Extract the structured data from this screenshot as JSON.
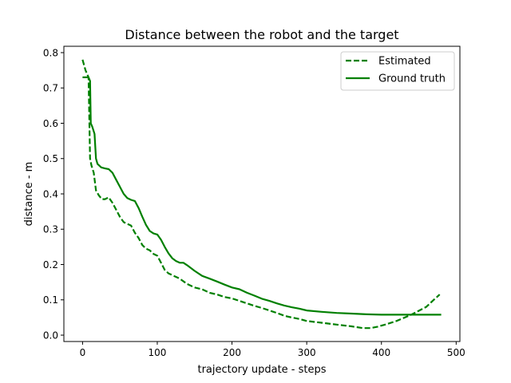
{
  "chart_data": {
    "type": "line",
    "title": "Distance between the robot and the target",
    "xlabel": "trajectory update - steps",
    "ylabel": "distance - m",
    "xlim": [
      -25,
      505
    ],
    "ylim": [
      -0.018,
      0.818
    ],
    "xticks": [
      0,
      100,
      200,
      300,
      400,
      500
    ],
    "yticks": [
      0.0,
      0.1,
      0.2,
      0.3,
      0.4,
      0.5,
      0.6,
      0.7,
      0.8
    ],
    "xtick_labels": [
      "0",
      "100",
      "200",
      "300",
      "400",
      "500"
    ],
    "ytick_labels": [
      "0.0",
      "0.1",
      "0.2",
      "0.3",
      "0.4",
      "0.5",
      "0.6",
      "0.7",
      "0.8"
    ],
    "grid": false,
    "legend_position": "top-right",
    "color": "#008000",
    "series": [
      {
        "name": "Estimated",
        "style": "dashed",
        "x": [
          0,
          4,
          8,
          10,
          12,
          15,
          18,
          22,
          26,
          30,
          35,
          40,
          45,
          50,
          55,
          60,
          65,
          70,
          75,
          80,
          85,
          90,
          95,
          100,
          105,
          110,
          115,
          120,
          125,
          130,
          140,
          150,
          160,
          170,
          180,
          190,
          200,
          210,
          220,
          230,
          240,
          250,
          260,
          270,
          280,
          290,
          300,
          320,
          340,
          360,
          375,
          385,
          395,
          405,
          420,
          440,
          460,
          470,
          478
        ],
        "y": [
          0.78,
          0.75,
          0.73,
          0.5,
          0.48,
          0.46,
          0.41,
          0.395,
          0.385,
          0.385,
          0.39,
          0.375,
          0.355,
          0.335,
          0.32,
          0.315,
          0.31,
          0.29,
          0.275,
          0.255,
          0.245,
          0.24,
          0.23,
          0.225,
          0.205,
          0.185,
          0.175,
          0.17,
          0.165,
          0.16,
          0.145,
          0.135,
          0.13,
          0.12,
          0.115,
          0.108,
          0.104,
          0.097,
          0.09,
          0.083,
          0.077,
          0.07,
          0.063,
          0.055,
          0.05,
          0.046,
          0.04,
          0.035,
          0.03,
          0.025,
          0.02,
          0.02,
          0.024,
          0.03,
          0.04,
          0.058,
          0.08,
          0.1,
          0.115
        ]
      },
      {
        "name": "Ground truth",
        "style": "solid",
        "x": [
          0,
          4,
          8,
          10,
          11,
          13,
          16,
          18,
          20,
          25,
          30,
          35,
          40,
          45,
          50,
          55,
          60,
          65,
          70,
          75,
          80,
          85,
          90,
          95,
          100,
          105,
          110,
          115,
          120,
          125,
          130,
          135,
          140,
          150,
          160,
          170,
          180,
          190,
          200,
          210,
          220,
          230,
          240,
          250,
          260,
          270,
          280,
          290,
          300,
          320,
          340,
          360,
          380,
          400,
          420,
          440,
          460,
          480
        ],
        "y": [
          0.73,
          0.73,
          0.73,
          0.72,
          0.6,
          0.59,
          0.57,
          0.5,
          0.485,
          0.475,
          0.472,
          0.47,
          0.46,
          0.44,
          0.42,
          0.4,
          0.388,
          0.383,
          0.38,
          0.36,
          0.335,
          0.312,
          0.295,
          0.288,
          0.285,
          0.27,
          0.25,
          0.232,
          0.218,
          0.21,
          0.205,
          0.205,
          0.198,
          0.182,
          0.168,
          0.16,
          0.152,
          0.143,
          0.135,
          0.13,
          0.12,
          0.112,
          0.103,
          0.097,
          0.09,
          0.084,
          0.079,
          0.075,
          0.07,
          0.066,
          0.063,
          0.061,
          0.059,
          0.058,
          0.058,
          0.058,
          0.058,
          0.058
        ]
      }
    ]
  }
}
